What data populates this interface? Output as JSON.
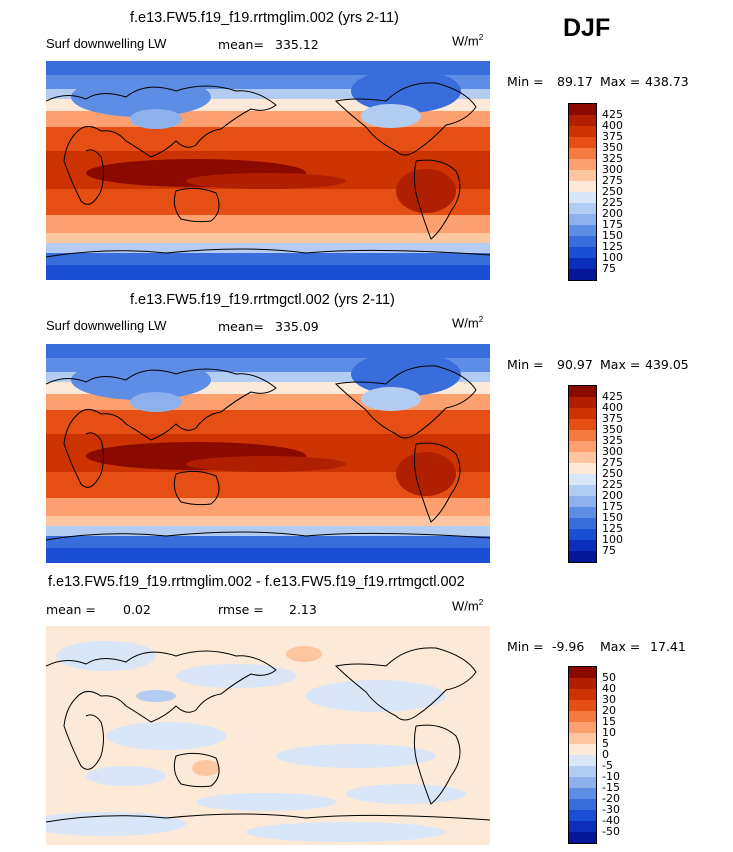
{
  "season": "DJF",
  "units": "W/m",
  "units_exp": "2",
  "panels": [
    {
      "title": "f.e13.FW5.f19_f19.rrtmglim.002 (yrs 2-11)",
      "variable": "Surf downwelling LW",
      "stat1_label": "mean=",
      "stat1_value": "335.12",
      "minmax_min_label": "Min =",
      "min": "89.17",
      "minmax_max_label": "Max =",
      "max": "438.73",
      "colors": [
        "#8b0a00",
        "#b01f00",
        "#cc3300",
        "#e64f14",
        "#f57a40",
        "#fca070",
        "#fdc6a1",
        "#fde9d7",
        "#d8e6f8",
        "#b3ccf2",
        "#8cb1ec",
        "#5d8de4",
        "#3a6ddc",
        "#1a4fd4",
        "#0b2fb8",
        "#061699"
      ],
      "levels": [
        "425",
        "400",
        "375",
        "350",
        "325",
        "300",
        "275",
        "250",
        "225",
        "200",
        "175",
        "150",
        "125",
        "100",
        "75"
      ]
    },
    {
      "title": "f.e13.FW5.f19_f19.rrtmgctl.002 (yrs 2-11)",
      "variable": "Surf downwelling LW",
      "stat1_label": "mean=",
      "stat1_value": "335.09",
      "minmax_min_label": "Min =",
      "min": "90.97",
      "minmax_max_label": "Max =",
      "max": "439.05",
      "colors": [
        "#8b0a00",
        "#b01f00",
        "#cc3300",
        "#e64f14",
        "#f57a40",
        "#fca070",
        "#fdc6a1",
        "#fde9d7",
        "#d8e6f8",
        "#b3ccf2",
        "#8cb1ec",
        "#5d8de4",
        "#3a6ddc",
        "#1a4fd4",
        "#0b2fb8",
        "#061699"
      ],
      "levels": [
        "425",
        "400",
        "375",
        "350",
        "325",
        "300",
        "275",
        "250",
        "225",
        "200",
        "175",
        "150",
        "125",
        "100",
        "75"
      ]
    },
    {
      "title": "f.e13.FW5.f19_f19.rrtmglim.002 - f.e13.FW5.f19_f19.rrtmgctl.002",
      "stat1_label": "mean =",
      "stat1_value": "0.02",
      "stat2_label": "rmse =",
      "stat2_value": "2.13",
      "minmax_min_label": "Min =",
      "min": "-9.96",
      "minmax_max_label": "Max =",
      "max": "17.41",
      "colors": [
        "#8b0a00",
        "#b01f00",
        "#cc3300",
        "#e64f14",
        "#f57a40",
        "#fca070",
        "#fdc6a1",
        "#fde9d7",
        "#d8e6f8",
        "#b3ccf2",
        "#8cb1ec",
        "#5d8de4",
        "#3a6ddc",
        "#1a4fd4",
        "#0b2fb8",
        "#061699"
      ],
      "levels": [
        "50",
        "40",
        "30",
        "20",
        "15",
        "10",
        "5",
        "0",
        "-5",
        "-10",
        "-15",
        "-20",
        "-30",
        "-40",
        "-50"
      ]
    }
  ]
}
